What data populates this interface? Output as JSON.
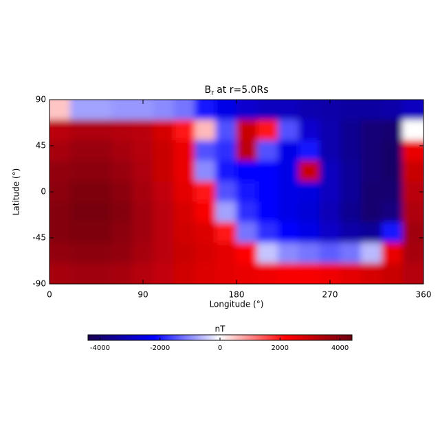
{
  "chart_data": {
    "type": "heatmap",
    "title_symbol": "B",
    "title_subscript": "r",
    "title_text": "at r=5.0Rs",
    "xlabel": "Longitude (°)",
    "ylabel": "Latitude (°)",
    "xlim": [
      0,
      360
    ],
    "xticks": [
      0,
      90,
      180,
      270,
      360
    ],
    "ylim": [
      -90,
      90
    ],
    "yticks": [
      -90,
      -45,
      0,
      45,
      90
    ],
    "x": [
      10,
      30,
      50,
      70,
      90,
      110,
      130,
      150,
      170,
      190,
      210,
      230,
      250,
      270,
      290,
      310,
      330,
      350
    ],
    "y": [
      80,
      60,
      40,
      20,
      0,
      -20,
      -40,
      -60,
      -80
    ],
    "z": [
      [
        500,
        -800,
        -800,
        -900,
        -900,
        -1000,
        -1200,
        -2000,
        -2500,
        -2800,
        -3000,
        -3000,
        -3200,
        -3300,
        -3400,
        -3400,
        -3300,
        -3000
      ],
      [
        3200,
        3400,
        3400,
        3300,
        3200,
        2800,
        2000,
        600,
        -1500,
        3000,
        2000,
        -1500,
        -2800,
        -3200,
        -3600,
        -3900,
        -4000,
        0
      ],
      [
        3500,
        3700,
        3700,
        3500,
        3300,
        3000,
        2500,
        -1500,
        -1800,
        3200,
        -1500,
        -2500,
        -2000,
        -3200,
        -3600,
        -3900,
        -4100,
        2500
      ],
      [
        3800,
        3900,
        3900,
        3700,
        3400,
        3000,
        2500,
        -1000,
        -2000,
        -2200,
        -2200,
        -2500,
        3000,
        -3000,
        -3500,
        -3900,
        -4100,
        3000
      ],
      [
        3900,
        4100,
        4100,
        3900,
        3500,
        3100,
        2600,
        2000,
        -1500,
        -2000,
        -2200,
        -2500,
        -2600,
        -3000,
        -3500,
        -4000,
        -4000,
        3200
      ],
      [
        4000,
        4200,
        4200,
        4000,
        3600,
        3200,
        2800,
        2300,
        -800,
        -1800,
        -2200,
        -2500,
        -2700,
        -3100,
        -3600,
        -4000,
        -3800,
        3400
      ],
      [
        4000,
        4100,
        4100,
        3900,
        3600,
        3200,
        2900,
        2700,
        2000,
        -1200,
        -1800,
        -2200,
        -2500,
        -2900,
        -3300,
        -3500,
        -2000,
        3600
      ],
      [
        3800,
        3900,
        3900,
        3800,
        3500,
        3200,
        3000,
        2800,
        2600,
        2200,
        -500,
        -1000,
        -1200,
        -1400,
        -1200,
        -600,
        2500,
        3500
      ],
      [
        3500,
        3600,
        3600,
        3500,
        3300,
        3100,
        2900,
        2700,
        2600,
        2500,
        2400,
        2300,
        2300,
        2400,
        2600,
        2800,
        3000,
        3300
      ]
    ],
    "colorbar_label": "nT",
    "clim": [
      -4400,
      4400
    ],
    "cticks": [
      -4000,
      -2000,
      0,
      2000,
      4000
    ],
    "colormap": [
      "#1a0050",
      "#0000ff",
      "#ffffff",
      "#ff0000",
      "#6a0010"
    ]
  }
}
